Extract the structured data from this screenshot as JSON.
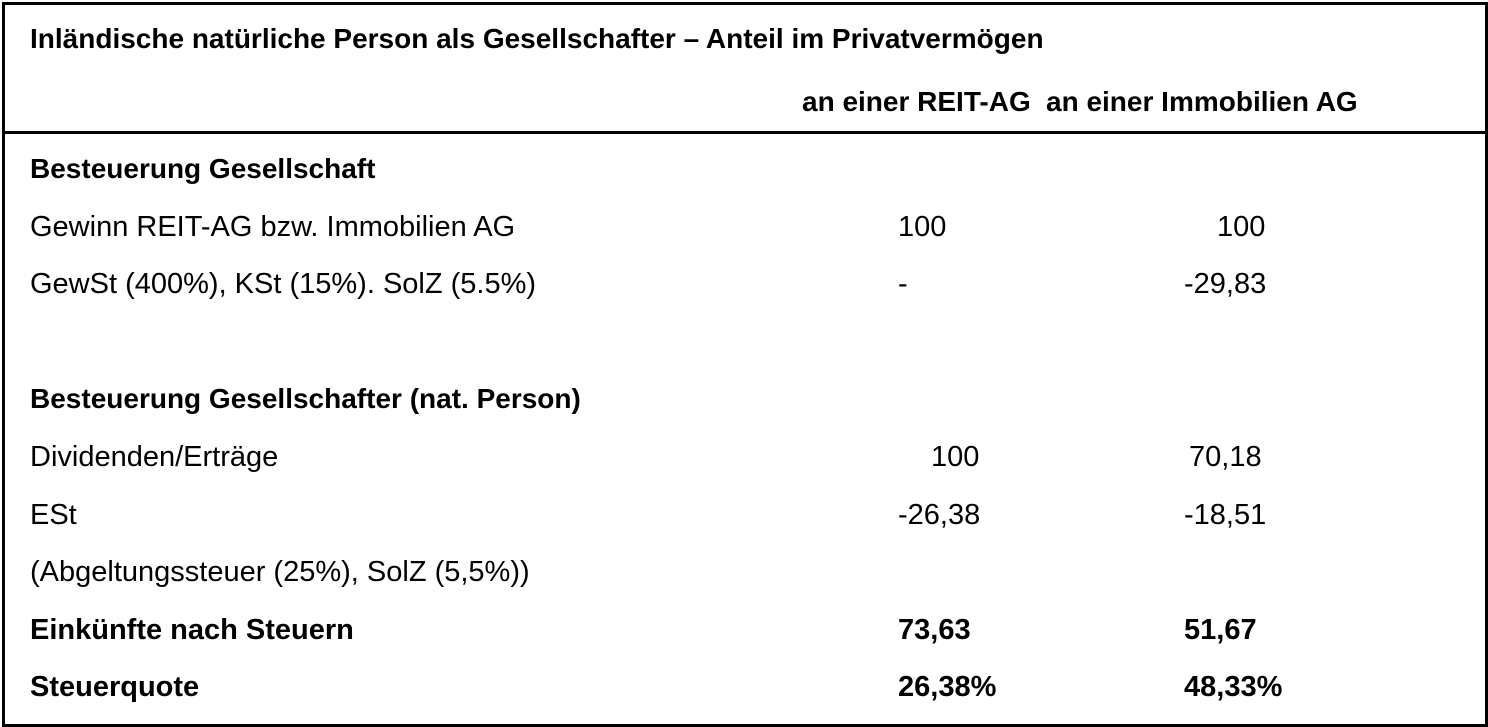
{
  "header": {
    "title": "Inländische natürliche Person als Gesellschafter – Anteil im Privatvermögen",
    "col1": "an einer REIT-AG",
    "col2": "an einer Immobilien AG"
  },
  "section_company": {
    "heading": "Besteuerung Gesellschaft",
    "rows": [
      {
        "label": "Gewinn REIT-AG bzw. Immobilien AG",
        "v1": "100",
        "v2": "100"
      },
      {
        "label": "GewSt (400%), KSt (15%). SolZ (5.5%)",
        "v1": "-",
        "v2": "-29,83"
      }
    ]
  },
  "section_shareholder": {
    "heading": "Besteuerung Gesellschafter (nat. Person)",
    "rows": [
      {
        "label": "Dividenden/Erträge",
        "v1": "100",
        "v2": "70,18"
      },
      {
        "label": "ESt",
        "v1": "-26,38",
        "v2": "-18,51"
      },
      {
        "label": "(Abgeltungssteuer (25%), SolZ (5,5%))"
      }
    ]
  },
  "totals": {
    "income_label": "Einkünfte nach Steuern",
    "income_v1": "73,63",
    "income_v2": "51,67",
    "rate_label": "Steuerquote",
    "rate_v1": "26,38%",
    "rate_v2": "48,33%"
  }
}
